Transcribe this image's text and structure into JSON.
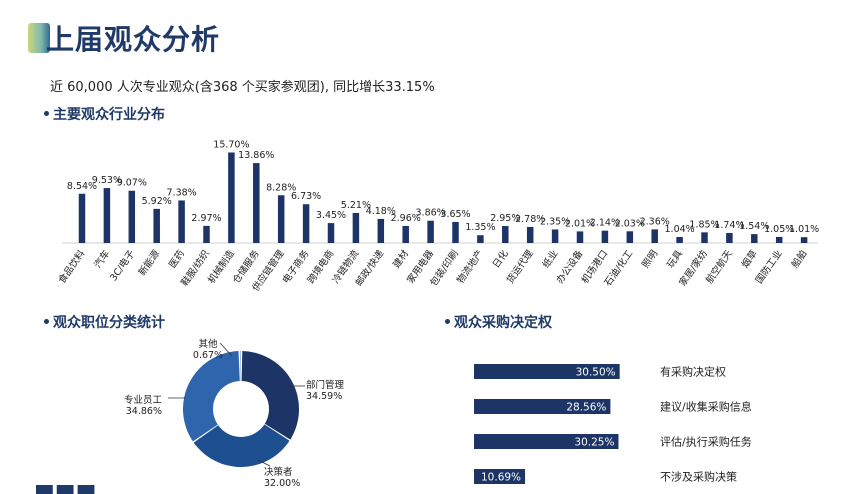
{
  "header": {
    "title": "上届观众分析"
  },
  "summary": "近 60,000 人次专业观众(含368 个买家参观团), 同比增长33.15%",
  "sections": {
    "industry": "主要观众行业分布",
    "position": "观众职位分类统计",
    "decision": "观众采购决定权"
  },
  "colors": {
    "primary": "#1f3a68",
    "navy": "#1c3566",
    "blue_mid": "#2f65ad",
    "blue_dark": "#1e4f91"
  },
  "chart_data": [
    {
      "type": "bar",
      "title": "主要观众行业分布",
      "categories": [
        "食品饮料",
        "汽车",
        "3C/电子",
        "新能源",
        "医药",
        "鞋服/纺织",
        "机械制造",
        "仓储服务",
        "供应链管理",
        "电子商务",
        "跨境电商",
        "冷链物流",
        "邮政/快递",
        "建材",
        "家用电器",
        "包装/印刷",
        "物流地产",
        "日化",
        "货运代理",
        "纸业",
        "办公设备",
        "机场港口",
        "石油/化工",
        "照明",
        "玩具",
        "家居/家纺",
        "航空航天",
        "烟草",
        "国防工业",
        "船舶"
      ],
      "values": [
        8.54,
        9.53,
        9.07,
        5.92,
        7.38,
        2.97,
        15.7,
        13.86,
        8.28,
        6.73,
        3.45,
        5.21,
        4.18,
        2.96,
        3.86,
        3.65,
        1.35,
        2.95,
        2.78,
        2.35,
        2.01,
        2.14,
        2.03,
        2.36,
        1.04,
        1.85,
        1.74,
        1.54,
        1.05,
        1.01
      ],
      "labels": [
        "8.54%",
        "9.53%",
        "9.07%",
        "5.92%",
        "7.38%",
        "2.97%",
        "15.70%",
        "13.86%",
        "8.28%",
        "6.73%",
        "3.45%",
        "5.21%",
        "4.18%",
        "2.96%",
        "3.86%",
        "3.65%",
        "1.35%",
        "2.95%",
        "2.78%",
        "2.35%",
        "2.01%",
        "2.14%",
        "2.03%",
        "2.36%",
        "1.04%",
        "1.85%",
        "1.74%",
        "1.54%",
        "1.05%",
        "1.01%"
      ],
      "ylim": [
        0,
        17
      ]
    },
    {
      "type": "pie",
      "title": "观众职位分类统计",
      "donut": true,
      "slices": [
        {
          "name": "部门管理",
          "value": 34.59,
          "label": "34.59%",
          "color": "#1c3566"
        },
        {
          "name": "决策者",
          "value": 32.0,
          "label": "32.00%",
          "color": "#1e4f91"
        },
        {
          "name": "专业员工",
          "value": 34.86,
          "label": "34.86%",
          "color": "#2f65ad"
        },
        {
          "name": "其他",
          "value": 0.67,
          "label": "0.67%",
          "color": "#9fb7dc"
        }
      ]
    },
    {
      "type": "bar",
      "orientation": "horizontal",
      "title": "观众采购决定权",
      "categories": [
        "有采购决定权",
        "建议/收集采购信息",
        "评估/执行采购任务",
        "不涉及采购决策"
      ],
      "values": [
        30.5,
        28.56,
        30.25,
        10.69
      ],
      "labels": [
        "30.50%",
        "28.56%",
        "30.25%",
        "10.69%"
      ],
      "xlim": [
        0,
        33.5
      ]
    }
  ]
}
